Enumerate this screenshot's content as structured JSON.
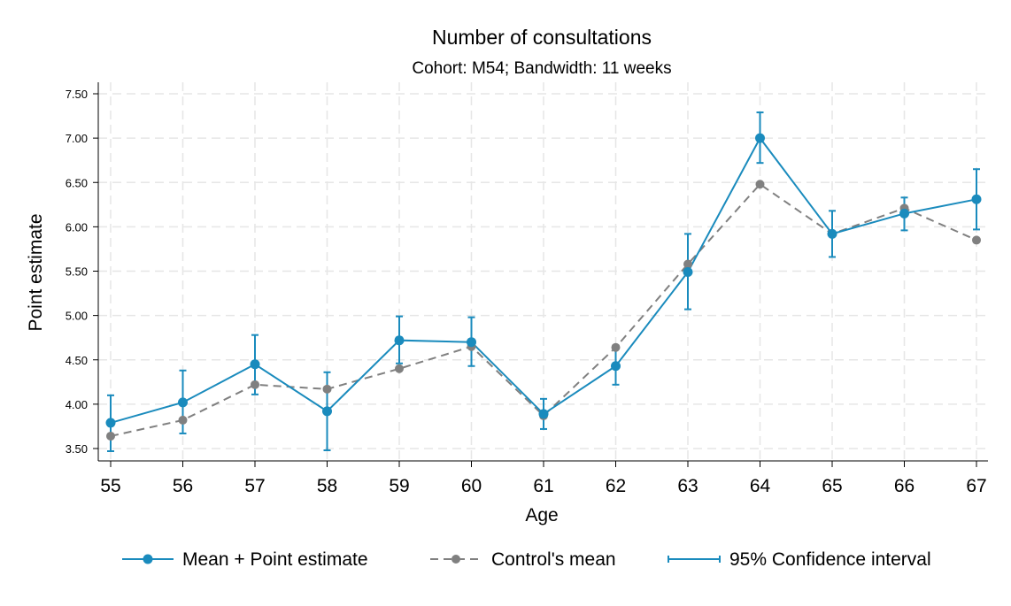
{
  "chart_data": {
    "type": "line",
    "title": "Number of consultations",
    "subtitle": "Cohort: M54; Bandwidth: 11 weeks",
    "xlabel": "Age",
    "ylabel": "Point estimate",
    "x": [
      55,
      56,
      57,
      58,
      59,
      60,
      61,
      62,
      63,
      64,
      65,
      66,
      67
    ],
    "x_tick_labels": [
      "55",
      "56",
      "57",
      "58",
      "59",
      "60",
      "61",
      "62",
      "63",
      "64",
      "65",
      "66",
      "67"
    ],
    "ylim": [
      3.3,
      7.6
    ],
    "y_ticks": [
      3.5,
      4.0,
      4.5,
      5.0,
      5.5,
      6.0,
      6.5,
      7.0,
      7.5
    ],
    "y_tick_labels": [
      "3.50",
      "4.00",
      "4.50",
      "5.00",
      "5.50",
      "6.00",
      "6.50",
      "7.00",
      "7.50"
    ],
    "grid": true,
    "legend_position": "bottom",
    "series": [
      {
        "name": "Mean + Point estimate",
        "style": "solid-marker",
        "color": "#1a8bbd",
        "values": [
          3.79,
          4.02,
          4.45,
          3.92,
          4.72,
          4.7,
          3.89,
          4.43,
          5.49,
          7.0,
          5.92,
          6.15,
          6.31
        ]
      },
      {
        "name": "Control's mean",
        "style": "dashed-marker",
        "color": "#808080",
        "values": [
          3.64,
          3.82,
          4.22,
          4.17,
          4.4,
          4.65,
          3.87,
          4.64,
          5.58,
          6.48,
          5.92,
          6.21,
          5.85
        ]
      },
      {
        "name": "95% Confidence interval",
        "style": "errorbar",
        "color": "#1a8bbd",
        "lower": [
          3.47,
          3.67,
          4.11,
          3.48,
          4.46,
          4.43,
          3.72,
          4.22,
          5.07,
          6.72,
          5.66,
          5.96,
          5.97
        ],
        "upper": [
          4.1,
          4.38,
          4.78,
          4.36,
          4.99,
          4.98,
          4.06,
          4.65,
          5.92,
          7.29,
          6.18,
          6.33,
          6.65
        ]
      }
    ]
  }
}
